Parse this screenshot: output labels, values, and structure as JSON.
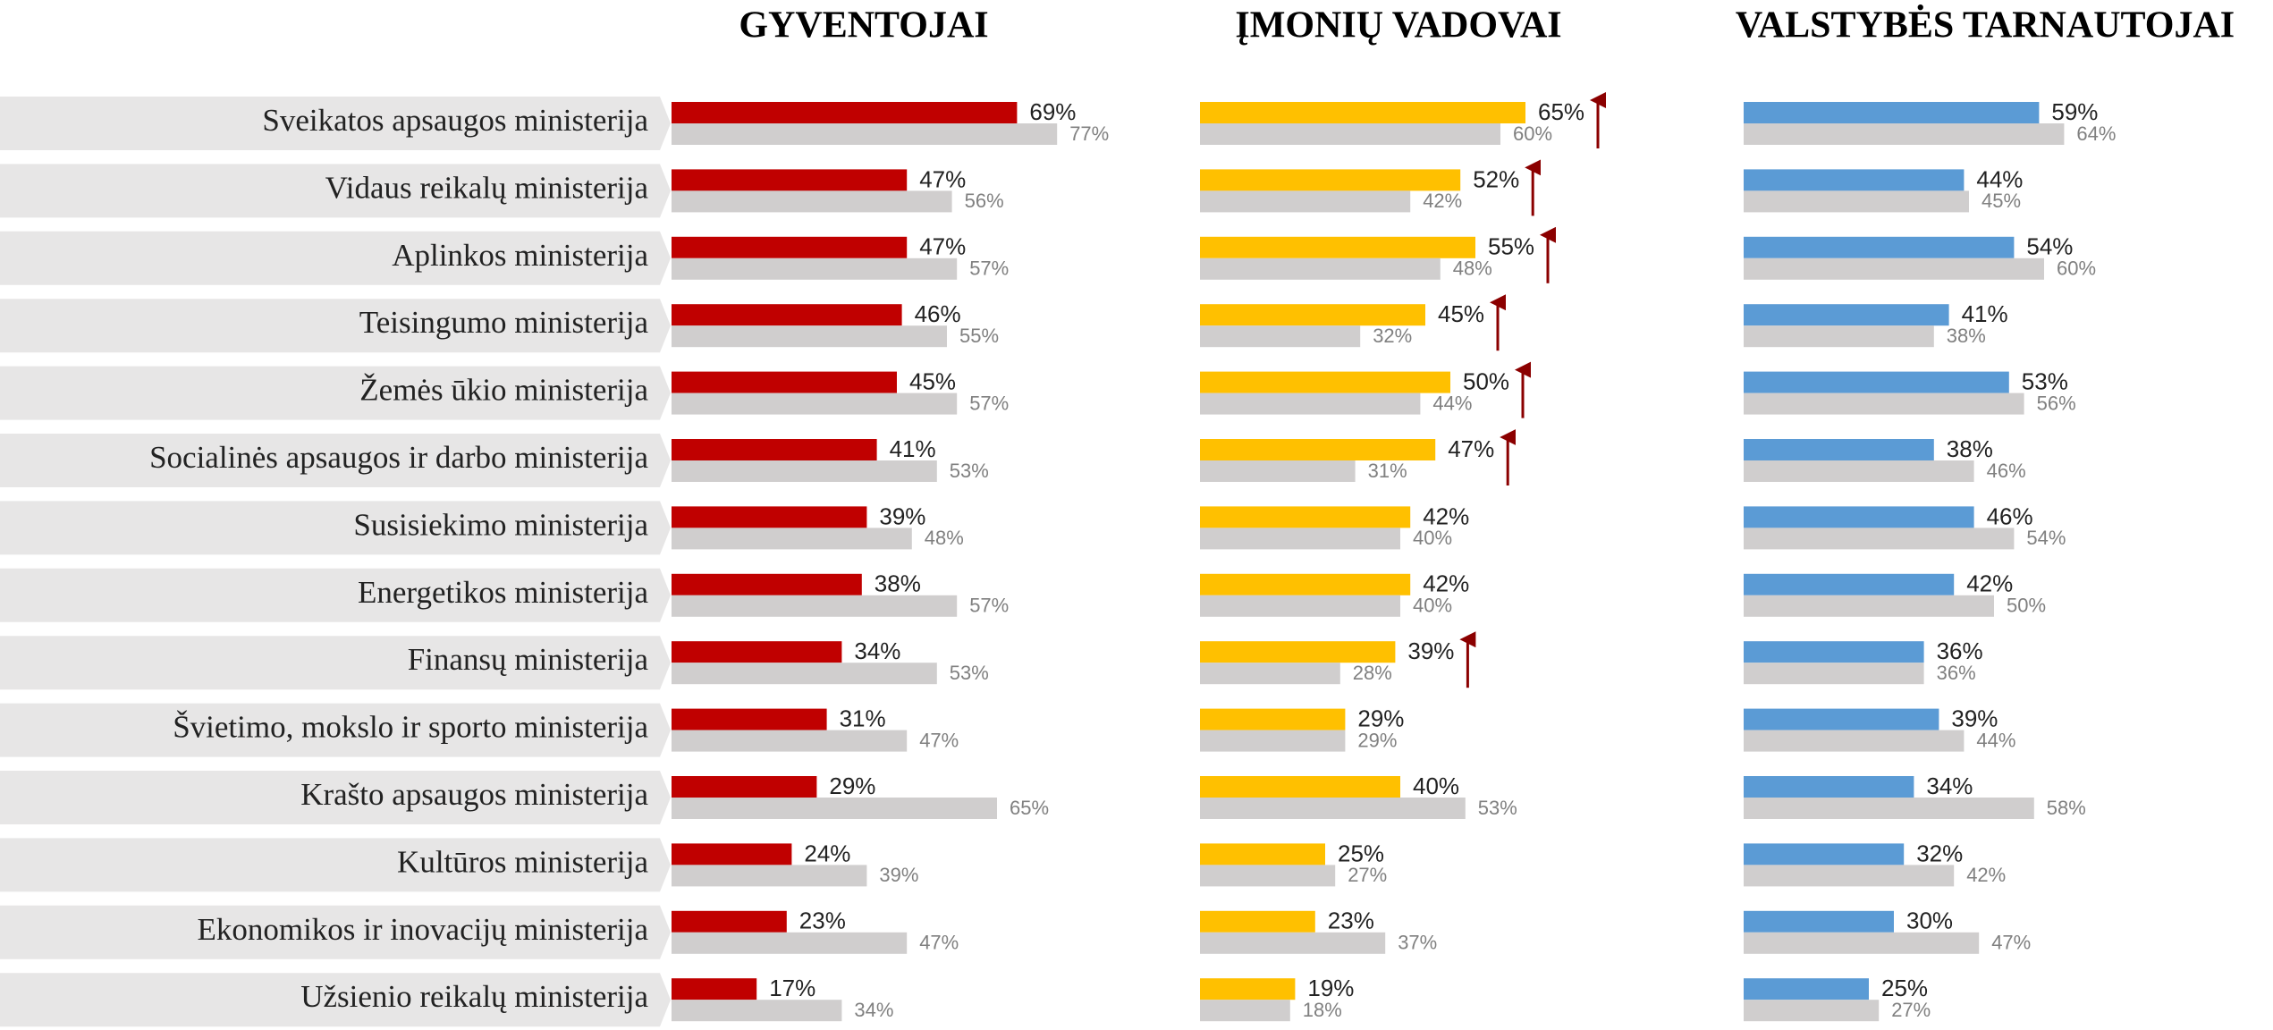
{
  "categories": [
    "Sveikatos apsaugos ministerija",
    "Vidaus reikalų ministerija",
    "Aplinkos ministerija",
    "Teisingumo ministerija",
    "Žemės ūkio ministerija",
    "Socialinės apsaugos ir darbo ministerija",
    "Susisiekimo ministerija",
    "Energetikos ministerija",
    "Finansų ministerija",
    "Švietimo, mokslo ir sporto ministerija",
    "Krašto apsaugos ministerija",
    "Kultūros ministerija",
    "Ekonomikos ir inovacijų ministerija",
    "Užsienio reikalų ministerija"
  ],
  "chart_data": [
    {
      "type": "bar",
      "title": "GYVENTOJAI",
      "xlim": [
        0,
        100
      ],
      "series": [
        {
          "color": "#c00000",
          "values": [
            69,
            47,
            47,
            46,
            45,
            41,
            39,
            38,
            34,
            31,
            29,
            24,
            23,
            17
          ],
          "value_labels": [
            "69%",
            "47%",
            "47%",
            "46%",
            "45%",
            "41%",
            "39%",
            "38%",
            "34%",
            "31%",
            "29%",
            "24%",
            "23%",
            "17%"
          ]
        },
        {
          "color": "#d0cece",
          "values": [
            77,
            56,
            57,
            55,
            57,
            53,
            48,
            57,
            53,
            47,
            65,
            39,
            47,
            34
          ],
          "value_labels": [
            "77%",
            "56%",
            "57%",
            "55%",
            "57%",
            "53%",
            "48%",
            "57%",
            "53%",
            "47%",
            "65%",
            "39%",
            "47%",
            "34%"
          ]
        }
      ],
      "increase": [
        false,
        false,
        false,
        false,
        false,
        false,
        false,
        false,
        false,
        false,
        false,
        false,
        false,
        false
      ]
    },
    {
      "type": "bar",
      "title": "ĮMONIŲ VADOVAI",
      "xlim": [
        0,
        100
      ],
      "series": [
        {
          "color": "#ffc000",
          "values": [
            65,
            52,
            55,
            45,
            50,
            47,
            42,
            42,
            39,
            29,
            40,
            25,
            23,
            19
          ],
          "value_labels": [
            "65%",
            "52%",
            "55%",
            "45%",
            "50%",
            "47%",
            "42%",
            "42%",
            "39%",
            "29%",
            "40%",
            "25%",
            "23%",
            "19%"
          ]
        },
        {
          "color": "#d0cece",
          "values": [
            60,
            42,
            48,
            32,
            44,
            31,
            40,
            40,
            28,
            29,
            53,
            27,
            37,
            18
          ],
          "value_labels": [
            "60%",
            "42%",
            "48%",
            "32%",
            "44%",
            "31%",
            "40%",
            "40%",
            "28%",
            "29%",
            "53%",
            "27%",
            "37%",
            "18%"
          ]
        }
      ],
      "increase": [
        true,
        true,
        true,
        true,
        true,
        true,
        false,
        false,
        true,
        false,
        false,
        false,
        false,
        false
      ]
    },
    {
      "type": "bar",
      "title": "VALSTYBĖS TARNAUTOJAI",
      "xlim": [
        0,
        100
      ],
      "series": [
        {
          "color": "#5b9bd5",
          "values": [
            59,
            44,
            54,
            41,
            53,
            38,
            46,
            42,
            36,
            39,
            34,
            32,
            30,
            25
          ],
          "value_labels": [
            "59%",
            "44%",
            "54%",
            "41%",
            "53%",
            "38%",
            "46%",
            "42%",
            "36%",
            "39%",
            "34%",
            "32%",
            "30%",
            "25%"
          ]
        },
        {
          "color": "#d0cece",
          "values": [
            64,
            45,
            60,
            38,
            56,
            46,
            54,
            50,
            36,
            44,
            58,
            42,
            47,
            27
          ],
          "value_labels": [
            "64%",
            "45%",
            "60%",
            "38%",
            "56%",
            "46%",
            "54%",
            "50%",
            "36%",
            "44%",
            "58%",
            "42%",
            "47%",
            "27%"
          ]
        }
      ],
      "increase": [
        false,
        false,
        false,
        false,
        false,
        false,
        false,
        false,
        false,
        false,
        false,
        false,
        false,
        false
      ]
    }
  ]
}
